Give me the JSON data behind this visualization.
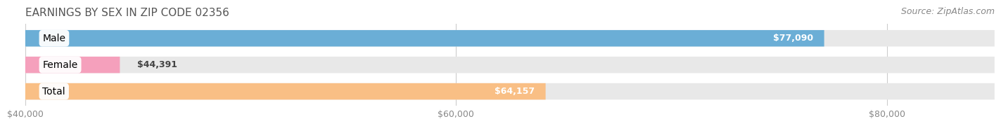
{
  "title": "EARNINGS BY SEX IN ZIP CODE 02356",
  "source": "Source: ZipAtlas.com",
  "categories": [
    "Male",
    "Female",
    "Total"
  ],
  "values": [
    77090,
    44391,
    64157
  ],
  "bar_colors": [
    "#6baed6",
    "#f5a0bc",
    "#f9bf85"
  ],
  "bar_labels": [
    "$77,090",
    "$44,391",
    "$64,157"
  ],
  "label_inside": [
    true,
    false,
    true
  ],
  "xmin": 40000,
  "xmax": 85000,
  "xticks": [
    40000,
    60000,
    80000
  ],
  "xtick_labels": [
    "$40,000",
    "$60,000",
    "$80,000"
  ],
  "background_color": "#ffffff",
  "bar_bg_color": "#e8e8e8",
  "title_fontsize": 11,
  "source_fontsize": 9,
  "label_fontsize": 9,
  "cat_fontsize": 10,
  "bar_height": 0.62,
  "bar_gap": 0.18
}
